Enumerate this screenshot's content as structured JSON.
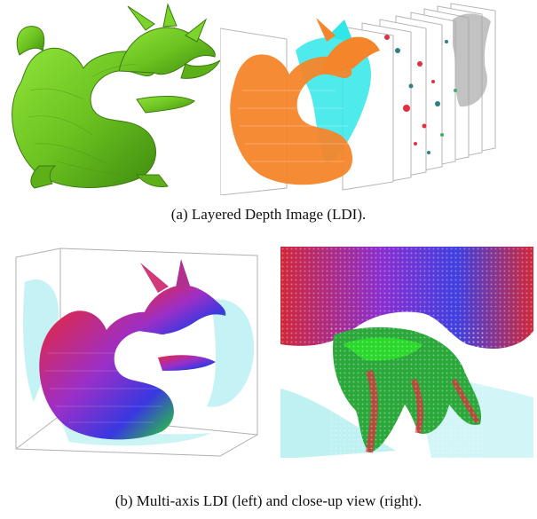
{
  "figure": {
    "caption_a": "(a)  Layered Depth Image (LDI).",
    "caption_b": "(b)  Multi-axis LDI (left) and close-up view (right)."
  },
  "colors": {
    "mesh_green": "#6cc320",
    "layer_orange": "#f5852b",
    "layer_cyan": "#30e6e8",
    "layer_red": "#e23040",
    "layer_teal": "#2e7f80",
    "layer_gray": "#9a9a9a",
    "ghost_cyan": "#bff1f3",
    "normal_red": "#e8283a",
    "normal_green": "#29d82a",
    "normal_blue": "#3838e0"
  }
}
